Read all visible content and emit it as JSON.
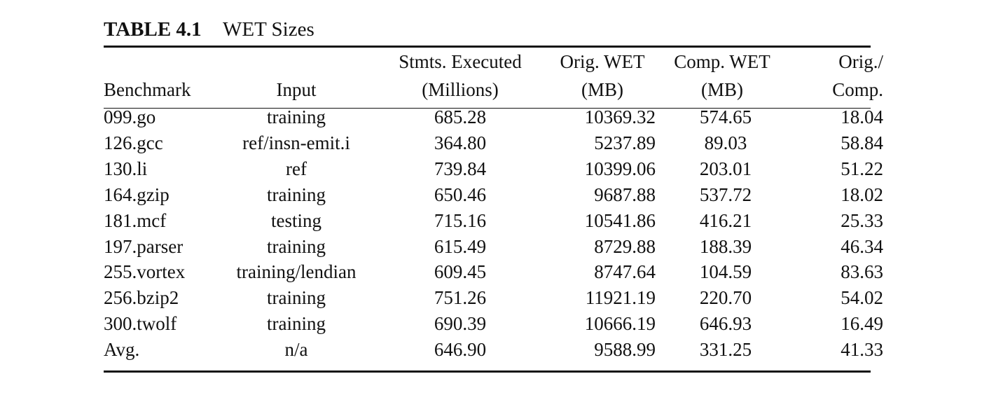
{
  "caption": {
    "label": "TABLE 4.1",
    "title": "WET Sizes"
  },
  "table": {
    "header_row1": [
      "",
      "",
      "Stmts. Executed",
      "Orig. WET",
      "Comp. WET",
      "Orig./"
    ],
    "header_row2": [
      "Benchmark",
      "Input",
      "(Millions)",
      "(MB)",
      "(MB)",
      "Comp."
    ],
    "rows": [
      [
        "099.go",
        "training",
        "685.28",
        "10369.32",
        "574.65",
        "18.04"
      ],
      [
        "126.gcc",
        "ref/insn-emit.i",
        "364.80",
        "5237.89",
        "89.03",
        "58.84"
      ],
      [
        "130.li",
        "ref",
        "739.84",
        "10399.06",
        "203.01",
        "51.22"
      ],
      [
        "164.gzip",
        "training",
        "650.46",
        "9687.88",
        "537.72",
        "18.02"
      ],
      [
        "181.mcf",
        "testing",
        "715.16",
        "10541.86",
        "416.21",
        "25.33"
      ],
      [
        "197.parser",
        "training",
        "615.49",
        "8729.88",
        "188.39",
        "46.34"
      ],
      [
        "255.vortex",
        "training/lendian",
        "609.45",
        "8747.64",
        "104.59",
        "83.63"
      ],
      [
        "256.bzip2",
        "training",
        "751.26",
        "11921.19",
        "220.70",
        "54.02"
      ],
      [
        "300.twolf",
        "training",
        "690.39",
        "10666.19",
        "646.93",
        "16.49"
      ],
      [
        "Avg.",
        "n/a",
        "646.90",
        "9588.99",
        "331.25",
        "41.33"
      ]
    ]
  }
}
